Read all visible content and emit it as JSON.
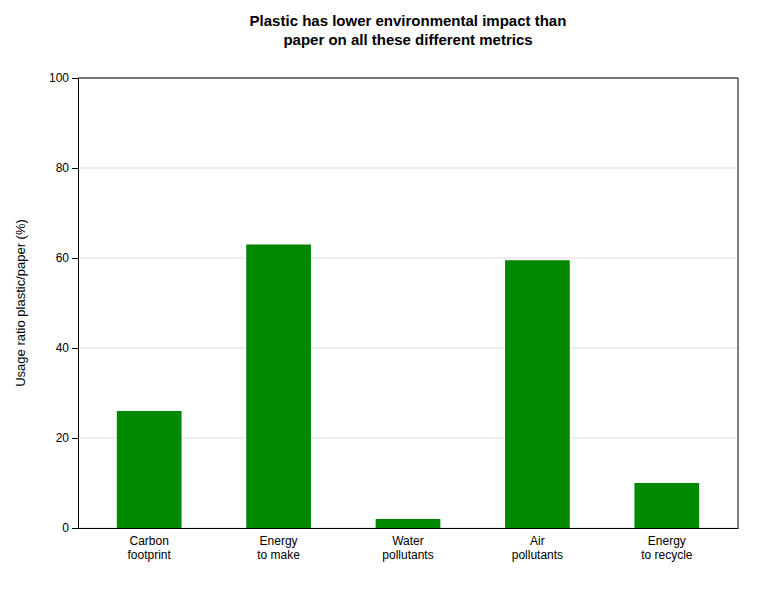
{
  "chart_data": {
    "type": "bar",
    "title": "Plastic has lower environmental impact than\npaper on all these different metrics",
    "categories": [
      "Carbon\nfootprint",
      "Energy\nto make",
      "Water\npollutants",
      "Air\npollutants",
      "Energy\nto recycle"
    ],
    "values": [
      26,
      63,
      2,
      59.5,
      10
    ],
    "color": "#008800",
    "ylabel": "Usage ratio plastic/paper (%)",
    "ylim": [
      0,
      100
    ],
    "yticks": [
      0,
      20,
      40,
      60,
      80,
      100
    ],
    "grid": true
  }
}
